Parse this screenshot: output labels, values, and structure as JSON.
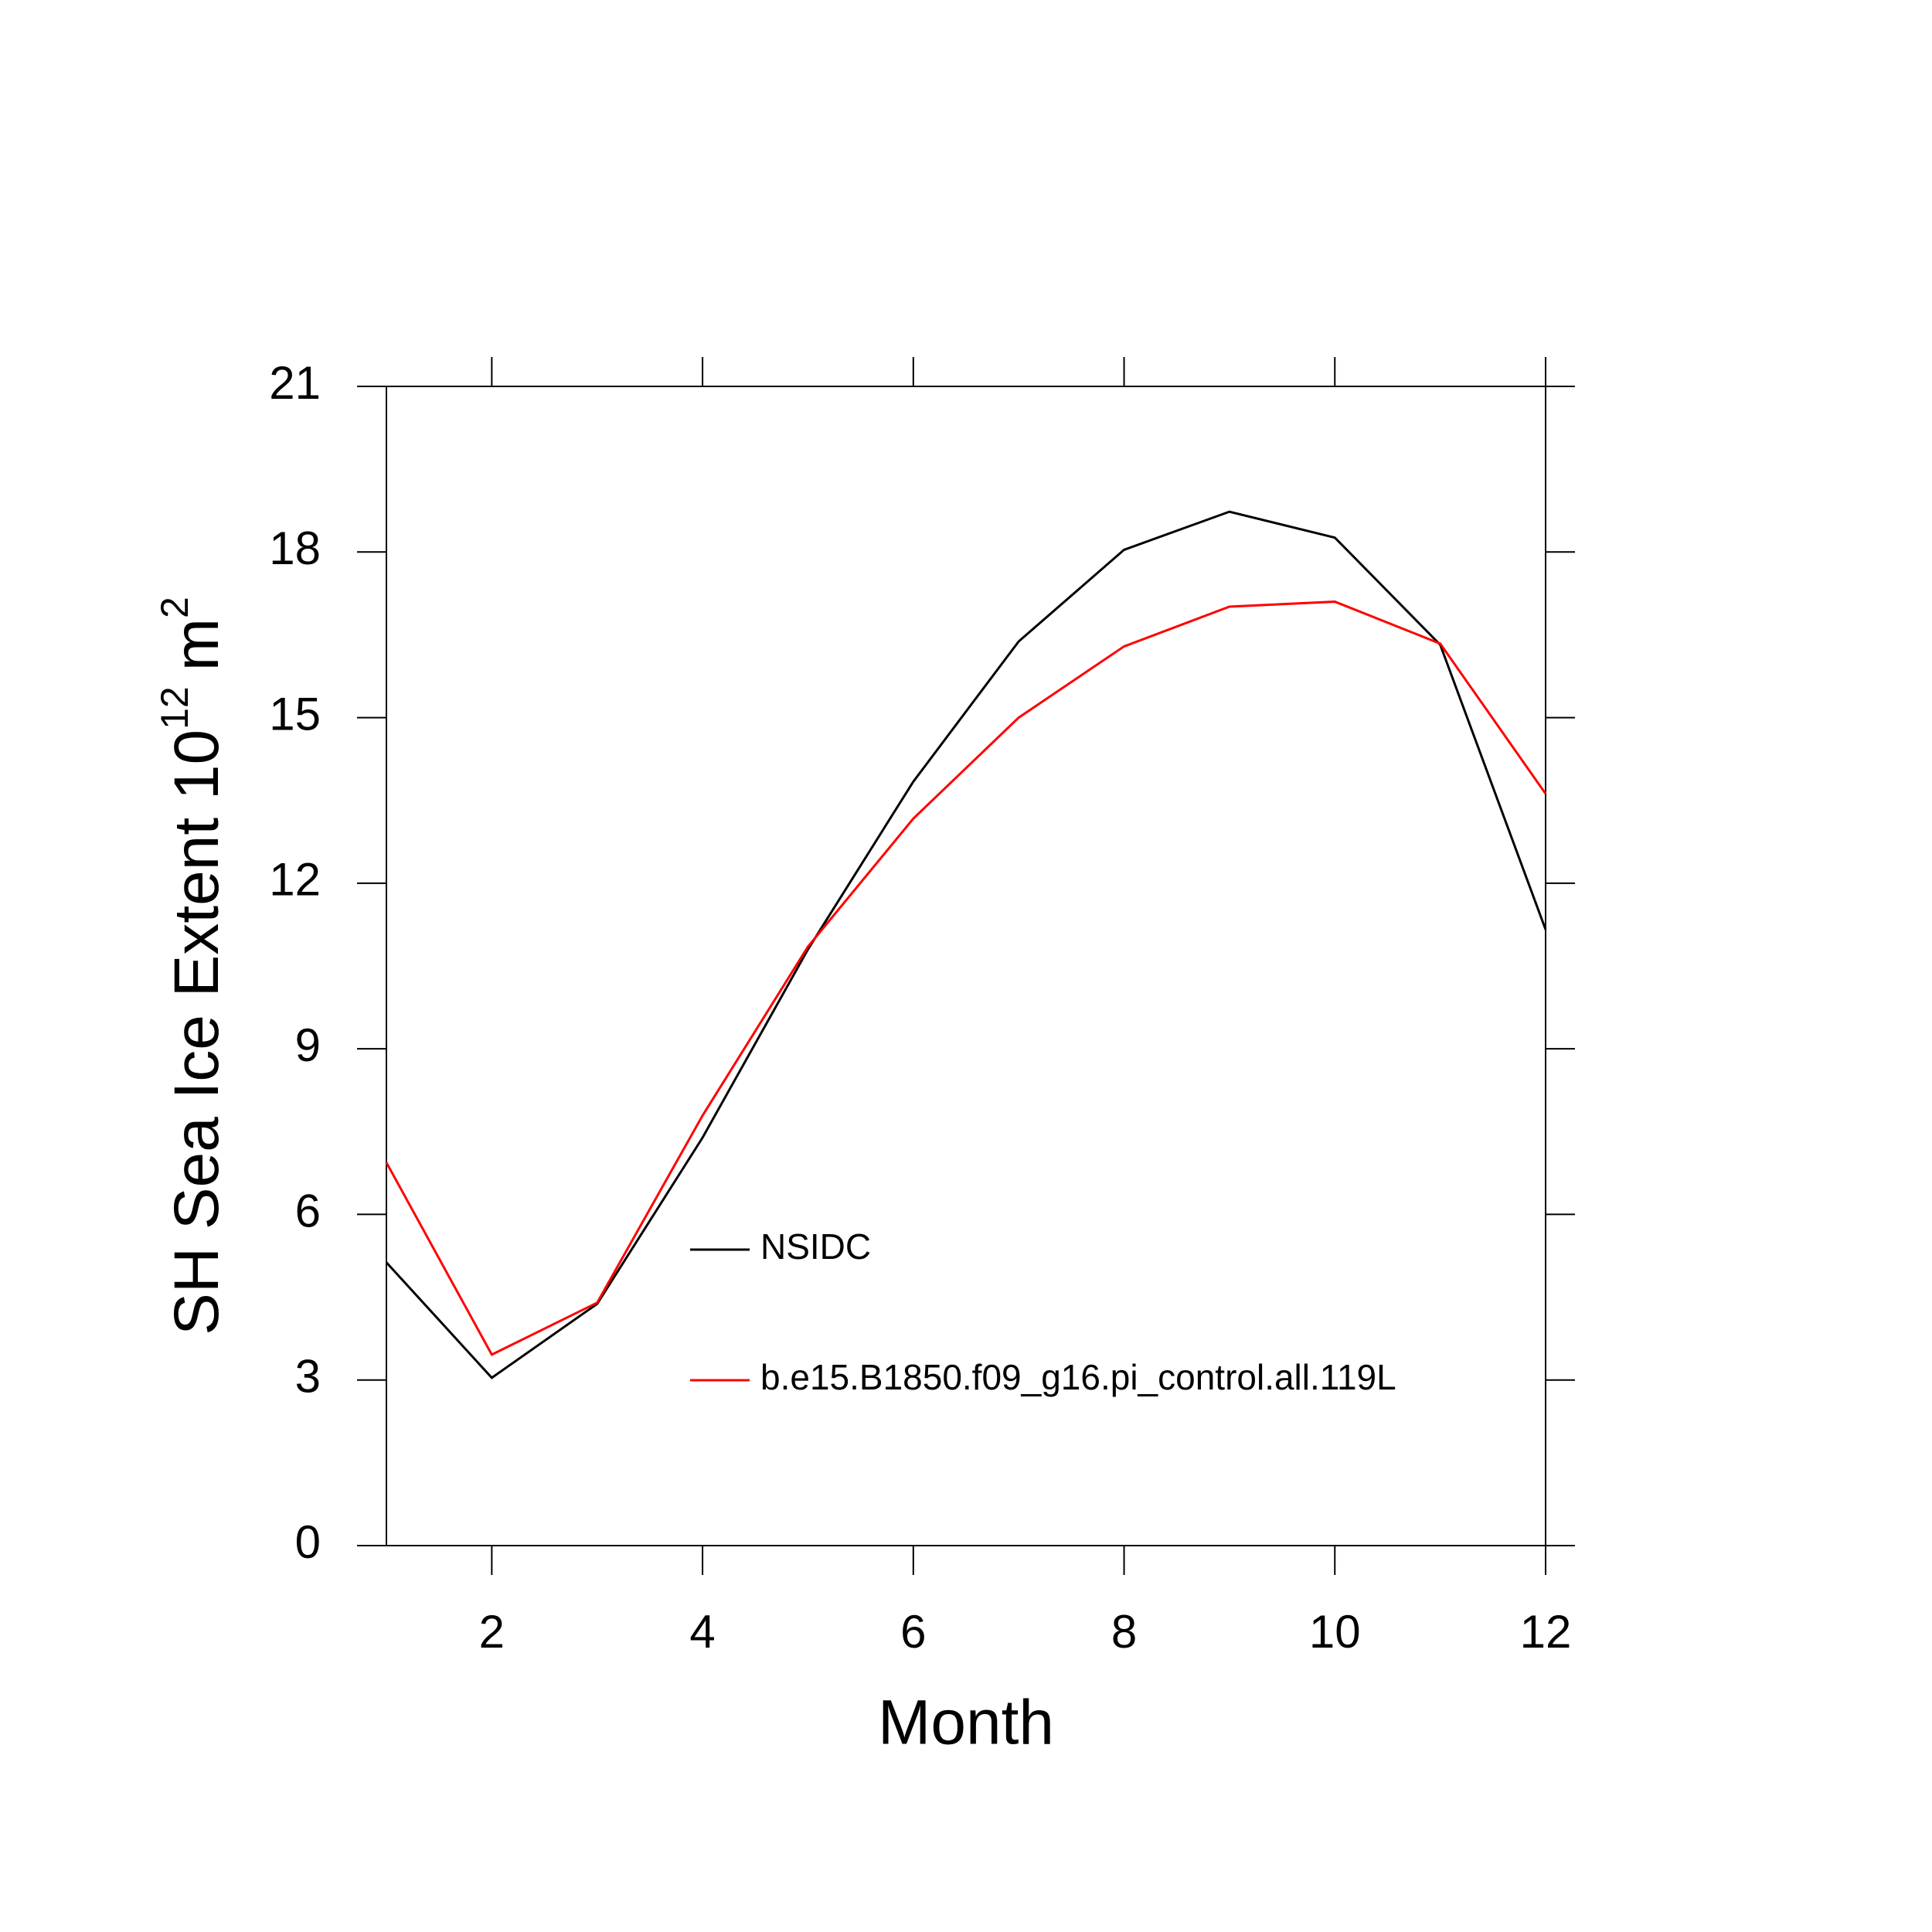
{
  "chart_data": {
    "type": "line",
    "x_label": "Month",
    "y_label": [
      "SH Sea Ice Extent 10",
      "12",
      "m",
      "2"
    ],
    "x": [
      1,
      2,
      3,
      4,
      5,
      6,
      7,
      8,
      9,
      10,
      11,
      12
    ],
    "series": [
      {
        "name": "NSIDC",
        "color": "#000000",
        "values": [
          5.13,
          3.04,
          4.38,
          7.39,
          10.8,
          13.84,
          16.38,
          18.04,
          18.73,
          18.26,
          16.32,
          11.16
        ]
      },
      {
        "name": "b.e15.B1850.f09_g16.pi_control.all.119L",
        "color": "#ff0000",
        "values": [
          6.94,
          3.46,
          4.4,
          7.79,
          10.85,
          13.17,
          15.0,
          16.29,
          17.01,
          17.1,
          16.34,
          13.62
        ]
      }
    ],
    "xlim": [
      1,
      12
    ],
    "xticks": [
      2,
      4,
      6,
      8,
      10,
      12
    ],
    "ylim": [
      0,
      21
    ],
    "yticks": [
      0,
      3,
      6,
      9,
      12,
      15,
      18,
      21
    ]
  }
}
